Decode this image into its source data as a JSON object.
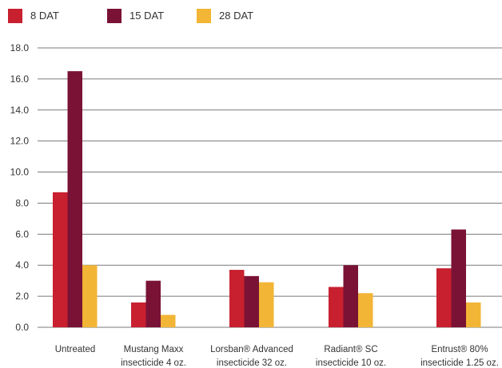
{
  "chart_data": {
    "type": "bar",
    "categories": [
      [
        "Untreated"
      ],
      [
        "Mustang Maxx",
        "insecticide 4 oz."
      ],
      [
        "Lorsban® Advanced",
        "insecticide 32 oz."
      ],
      [
        "Radiant® SC",
        "insecticide 10 oz."
      ],
      [
        "Entrust® 80%",
        "insecticide 1.25 oz."
      ]
    ],
    "series": [
      {
        "name": "8 DAT",
        "color": "#c8202f",
        "values": [
          8.7,
          1.6,
          3.7,
          2.6,
          3.8
        ]
      },
      {
        "name": "15 DAT",
        "color": "#7a1236",
        "values": [
          16.5,
          3.0,
          3.3,
          4.0,
          6.3
        ]
      },
      {
        "name": "28 DAT",
        "color": "#f2b535",
        "values": [
          4.0,
          0.8,
          2.9,
          2.2,
          1.6
        ]
      }
    ],
    "ylim": [
      0,
      18
    ],
    "yticks": [
      "0.0",
      "2.0",
      "4.0",
      "6.0",
      "8.0",
      "10.0",
      "12.0",
      "14.0",
      "16.0",
      "18.0"
    ],
    "grid": true,
    "legend_position": "top-left",
    "title": "",
    "xlabel": "",
    "ylabel": ""
  }
}
